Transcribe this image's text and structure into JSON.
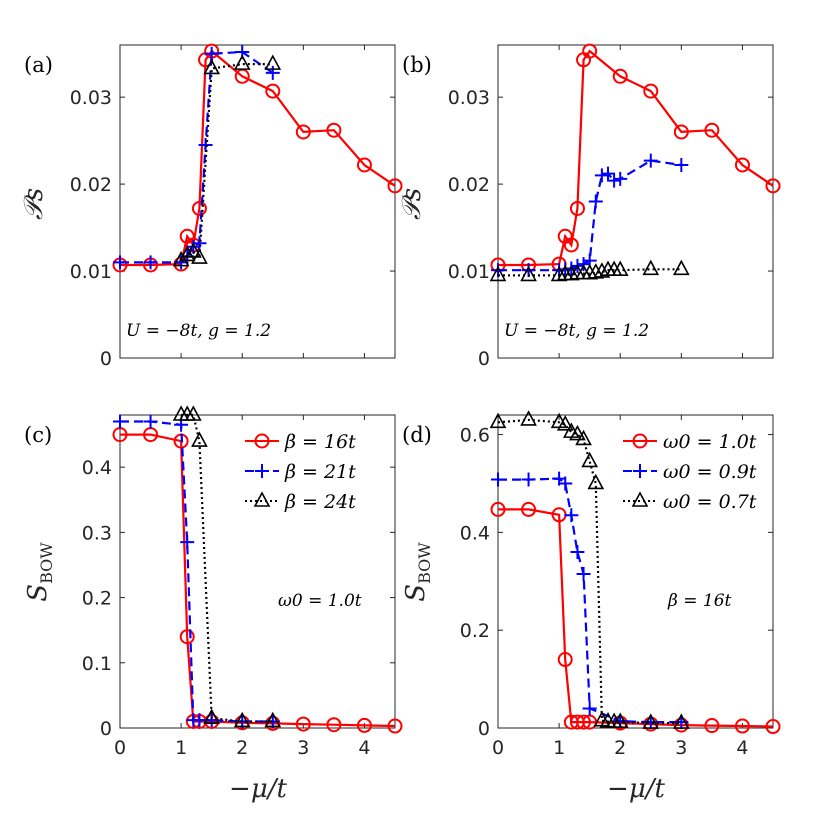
{
  "figure": {
    "xlabel": "−μ/t"
  },
  "colors": {
    "red": "#ff0000",
    "blue": "#0000ff",
    "black": "#000000",
    "axis": "#262626"
  },
  "chart_data": [
    {
      "type": "line",
      "panel": "(a)",
      "xlim": [
        0,
        4.5
      ],
      "ylim": [
        0,
        0.036
      ],
      "xticks": [],
      "yticks": [
        0,
        0.01,
        0.02,
        0.03
      ],
      "yticklabels": [
        "0",
        "0.01",
        "0.02",
        "0.03"
      ],
      "ylabel": "𝒫s",
      "xlabel": "",
      "annotation": "U = −8t, g = 1.2",
      "series": [
        {
          "name": "β = 16t",
          "color": "red",
          "dash": "",
          "marker": "circle",
          "x": [
            0,
            0.5,
            1.0,
            1.1,
            1.2,
            1.3,
            1.4,
            1.5,
            2.0,
            2.5,
            3.0,
            3.5,
            4.0,
            4.5
          ],
          "y": [
            0.0107,
            0.0107,
            0.0108,
            0.014,
            0.013,
            0.0172,
            0.0343,
            0.0353,
            0.0324,
            0.0307,
            0.026,
            0.0262,
            0.0222,
            0.0198
          ]
        },
        {
          "name": "β = 21t",
          "color": "blue",
          "dash": "9,5",
          "marker": "plus",
          "x": [
            0,
            0.5,
            1.0,
            1.1,
            1.2,
            1.3,
            1.4,
            1.5,
            2.0,
            2.5
          ],
          "y": [
            0.011,
            0.011,
            0.011,
            0.0117,
            0.0128,
            0.0132,
            0.0245,
            0.035,
            0.0352,
            0.0328
          ]
        },
        {
          "name": "β = 24t",
          "color": "black",
          "dash": "2,3",
          "marker": "triangle",
          "x": [
            1.0,
            1.1,
            1.2,
            1.3,
            1.5,
            2.0,
            2.5
          ],
          "y": [
            0.0112,
            0.0118,
            0.0122,
            0.0115,
            0.0333,
            0.0338,
            0.0338
          ]
        }
      ]
    },
    {
      "type": "line",
      "panel": "(b)",
      "xlim": [
        0,
        4.5
      ],
      "ylim": [
        0,
        0.036
      ],
      "xticks": [],
      "yticks": [
        0,
        0.01,
        0.02,
        0.03
      ],
      "yticklabels": [
        "0",
        "0.01",
        "0.02",
        "0.03"
      ],
      "ylabel": "𝒫s",
      "xlabel": "",
      "annotation": "U = −8t, g = 1.2",
      "series": [
        {
          "name": "ω0 = 1.0t",
          "color": "red",
          "dash": "",
          "marker": "circle",
          "x": [
            0,
            0.5,
            1.0,
            1.1,
            1.2,
            1.3,
            1.4,
            1.5,
            2.0,
            2.5,
            3.0,
            3.5,
            4.0,
            4.5
          ],
          "y": [
            0.0107,
            0.0107,
            0.0108,
            0.014,
            0.013,
            0.0172,
            0.0343,
            0.0353,
            0.0324,
            0.0307,
            0.026,
            0.0262,
            0.0222,
            0.0198
          ]
        },
        {
          "name": "ω0 = 0.9t",
          "color": "blue",
          "dash": "9,5",
          "marker": "plus",
          "x": [
            0,
            0.5,
            1.0,
            1.1,
            1.2,
            1.3,
            1.4,
            1.5,
            1.6,
            1.7,
            1.8,
            1.9,
            2.0,
            2.5,
            3.0
          ],
          "y": [
            0.0101,
            0.0101,
            0.0101,
            0.0102,
            0.0103,
            0.0106,
            0.0108,
            0.0112,
            0.018,
            0.021,
            0.0212,
            0.0204,
            0.0206,
            0.0227,
            0.0222
          ]
        },
        {
          "name": "ω0 = 0.7t",
          "color": "black",
          "dash": "2,3",
          "marker": "triangle",
          "x": [
            0,
            0.5,
            1.0,
            1.1,
            1.2,
            1.3,
            1.4,
            1.5,
            1.6,
            1.7,
            1.8,
            1.9,
            2.0,
            2.5,
            3.0
          ],
          "y": [
            0.0095,
            0.0095,
            0.0095,
            0.0096,
            0.0096,
            0.0097,
            0.0097,
            0.0097,
            0.0098,
            0.0099,
            0.0101,
            0.0101,
            0.0101,
            0.0102,
            0.0102
          ]
        }
      ]
    },
    {
      "type": "line",
      "panel": "(c)",
      "xlim": [
        0,
        4.5
      ],
      "ylim": [
        0,
        0.48
      ],
      "xticks": [
        0,
        1,
        2,
        3,
        4
      ],
      "xticklabels": [
        "0",
        "1",
        "2",
        "3",
        "4"
      ],
      "yticks": [
        0,
        0.1,
        0.2,
        0.3,
        0.4
      ],
      "yticklabels": [
        "0",
        "0.1",
        "0.2",
        "0.3",
        "0.4"
      ],
      "ylabel": "S",
      "ylabel_sub": "BOW",
      "xlabel": "−μ/t",
      "annotation": "ω0 = 1.0t",
      "legend_location": "top-right",
      "series": [
        {
          "name": "β = 16t",
          "color": "red",
          "dash": "",
          "marker": "circle",
          "x": [
            0,
            0.5,
            1.0,
            1.1,
            1.2,
            1.3,
            1.5,
            2.0,
            2.5,
            3.0,
            3.5,
            4.0,
            4.5
          ],
          "y": [
            0.45,
            0.45,
            0.44,
            0.14,
            0.01,
            0.01,
            0.01,
            0.008,
            0.007,
            0.006,
            0.005,
            0.004,
            0.003
          ]
        },
        {
          "name": "β = 21t",
          "color": "blue",
          "dash": "9,5",
          "marker": "plus",
          "x": [
            0,
            0.5,
            1.0,
            1.1,
            1.2,
            1.3,
            1.5,
            2.0,
            2.5
          ],
          "y": [
            0.47,
            0.47,
            0.465,
            0.285,
            0.012,
            0.012,
            0.012,
            0.01,
            0.01
          ]
        },
        {
          "name": "β = 24t",
          "color": "black",
          "dash": "2,3",
          "marker": "triangle",
          "x": [
            1.0,
            1.1,
            1.2,
            1.3,
            1.5,
            2.0,
            2.5
          ],
          "y": [
            0.48,
            0.48,
            0.48,
            0.44,
            0.015,
            0.01,
            0.01
          ]
        }
      ]
    },
    {
      "type": "line",
      "panel": "(d)",
      "xlim": [
        0,
        4.5
      ],
      "ylim": [
        0,
        0.64
      ],
      "xticks": [
        0,
        1,
        2,
        3,
        4
      ],
      "xticklabels": [
        "0",
        "1",
        "2",
        "3",
        "4"
      ],
      "yticks": [
        0,
        0.2,
        0.4,
        0.6
      ],
      "yticklabels": [
        "0",
        "0.2",
        "0.4",
        "0.6"
      ],
      "ylabel": "S",
      "ylabel_sub": "BOW",
      "xlabel": "−μ/t",
      "annotation": "β = 16t",
      "legend_location": "top-right",
      "series": [
        {
          "name": "ω0 = 1.0t",
          "color": "red",
          "dash": "",
          "marker": "circle",
          "x": [
            0,
            0.5,
            1.0,
            1.1,
            1.2,
            1.3,
            1.4,
            1.5,
            2.0,
            2.5,
            3.0,
            3.5,
            4.0,
            4.5
          ],
          "y": [
            0.447,
            0.447,
            0.436,
            0.14,
            0.012,
            0.012,
            0.012,
            0.012,
            0.01,
            0.008,
            0.006,
            0.005,
            0.004,
            0.003
          ]
        },
        {
          "name": "ω0 = 0.9t",
          "color": "blue",
          "dash": "9,5",
          "marker": "plus",
          "x": [
            0,
            0.5,
            1.0,
            1.1,
            1.2,
            1.3,
            1.4,
            1.5,
            2.0,
            2.5,
            3.0
          ],
          "y": [
            0.508,
            0.508,
            0.51,
            0.5,
            0.435,
            0.36,
            0.315,
            0.04,
            0.014,
            0.012,
            0.012
          ]
        },
        {
          "name": "ω0 = 0.7t",
          "color": "black",
          "dash": "2,3",
          "marker": "triangle",
          "x": [
            0,
            0.5,
            1.0,
            1.1,
            1.2,
            1.3,
            1.4,
            1.5,
            1.6,
            1.7,
            1.8,
            1.9,
            2.0,
            2.5,
            3.0
          ],
          "y": [
            0.625,
            0.63,
            0.625,
            0.62,
            0.605,
            0.6,
            0.59,
            0.545,
            0.5,
            0.015,
            0.013,
            0.012,
            0.012,
            0.01,
            0.01
          ]
        }
      ]
    }
  ]
}
